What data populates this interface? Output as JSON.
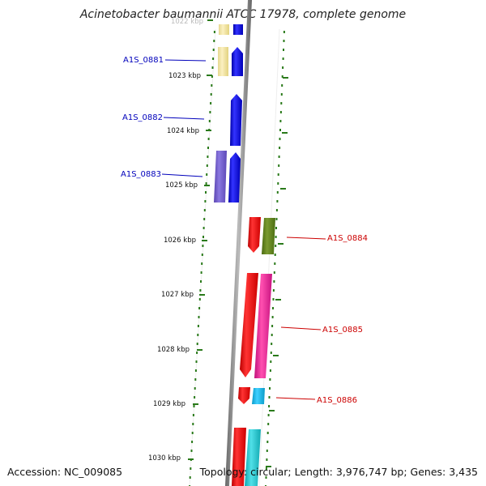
{
  "title": "Acinetobacter baumannii ATCC 17978, complete genome",
  "accession": "Accession: NC_009085",
  "topology": "Topology: circular; Length: 3,976,747 bp; Genes: 3,435",
  "ticks": [
    "1022 kbp",
    "1023 kbp",
    "1024 kbp",
    "1025 kbp",
    "1026 kbp",
    "1027 kbp",
    "1028 kbp",
    "1029 kbp",
    "1030 kbp"
  ],
  "genes": [
    {
      "label": "A1S_0881",
      "strand": "forward",
      "color": "#0000cc",
      "start_kbp": 1022.55,
      "end_kbp": 1023.0
    },
    {
      "label": "A1S_0882",
      "strand": "forward",
      "color": "#0000cc",
      "start_kbp": 1023.3,
      "end_kbp": 1024.25
    },
    {
      "label": "A1S_0883",
      "strand": "forward",
      "color": "#0000cc",
      "start_kbp": 1024.4,
      "end_kbp": 1025.3
    },
    {
      "label": "A1S_0884",
      "strand": "reverse",
      "color": "#cc0000",
      "start_kbp": 1025.7,
      "end_kbp": 1026.35
    },
    {
      "label": "A1S_0885",
      "strand": "reverse",
      "color": "#cc0000",
      "start_kbp": 1026.6,
      "end_kbp": 1028.5
    },
    {
      "label": "A1S_0886",
      "strand": "reverse",
      "color": "#cc0000",
      "start_kbp": 1028.7,
      "end_kbp": 1029.0
    }
  ],
  "colors": {
    "forward_cds": "#0000ee",
    "reverse_cds": "#ee0000",
    "forward_label": "#0000bb",
    "reverse_label": "#cc0000",
    "backbone": "#888888",
    "gc_ticks": "#2a7a1a"
  }
}
